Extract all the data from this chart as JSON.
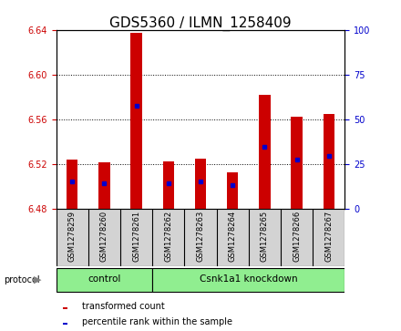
{
  "title": "GDS5360 / ILMN_1258409",
  "samples": [
    "GSM1278259",
    "GSM1278260",
    "GSM1278261",
    "GSM1278262",
    "GSM1278263",
    "GSM1278264",
    "GSM1278265",
    "GSM1278266",
    "GSM1278267"
  ],
  "bar_bottoms": [
    6.48,
    6.48,
    6.48,
    6.48,
    6.48,
    6.48,
    6.48,
    6.48,
    6.48
  ],
  "bar_tops": [
    6.524,
    6.521,
    6.637,
    6.522,
    6.525,
    6.512,
    6.582,
    6.562,
    6.565
  ],
  "percentile_values": [
    6.504,
    6.503,
    6.572,
    6.503,
    6.504,
    6.501,
    6.535,
    6.524,
    6.527
  ],
  "ylim": [
    6.48,
    6.64
  ],
  "yticks_left": [
    6.48,
    6.52,
    6.56,
    6.6,
    6.64
  ],
  "yticks_right": [
    0,
    25,
    50,
    75,
    100
  ],
  "right_ylim": [
    0,
    100
  ],
  "bar_color": "#cc0000",
  "percentile_color": "#0000cc",
  "groups": [
    {
      "label": "control",
      "start": 0,
      "end": 3
    },
    {
      "label": "Csnk1a1 knockdown",
      "start": 3,
      "end": 9
    }
  ],
  "group_color": "#90ee90",
  "protocol_label": "protocol",
  "bar_width": 0.35,
  "title_fontsize": 11,
  "tick_fontsize": 7,
  "label_fontsize": 7
}
